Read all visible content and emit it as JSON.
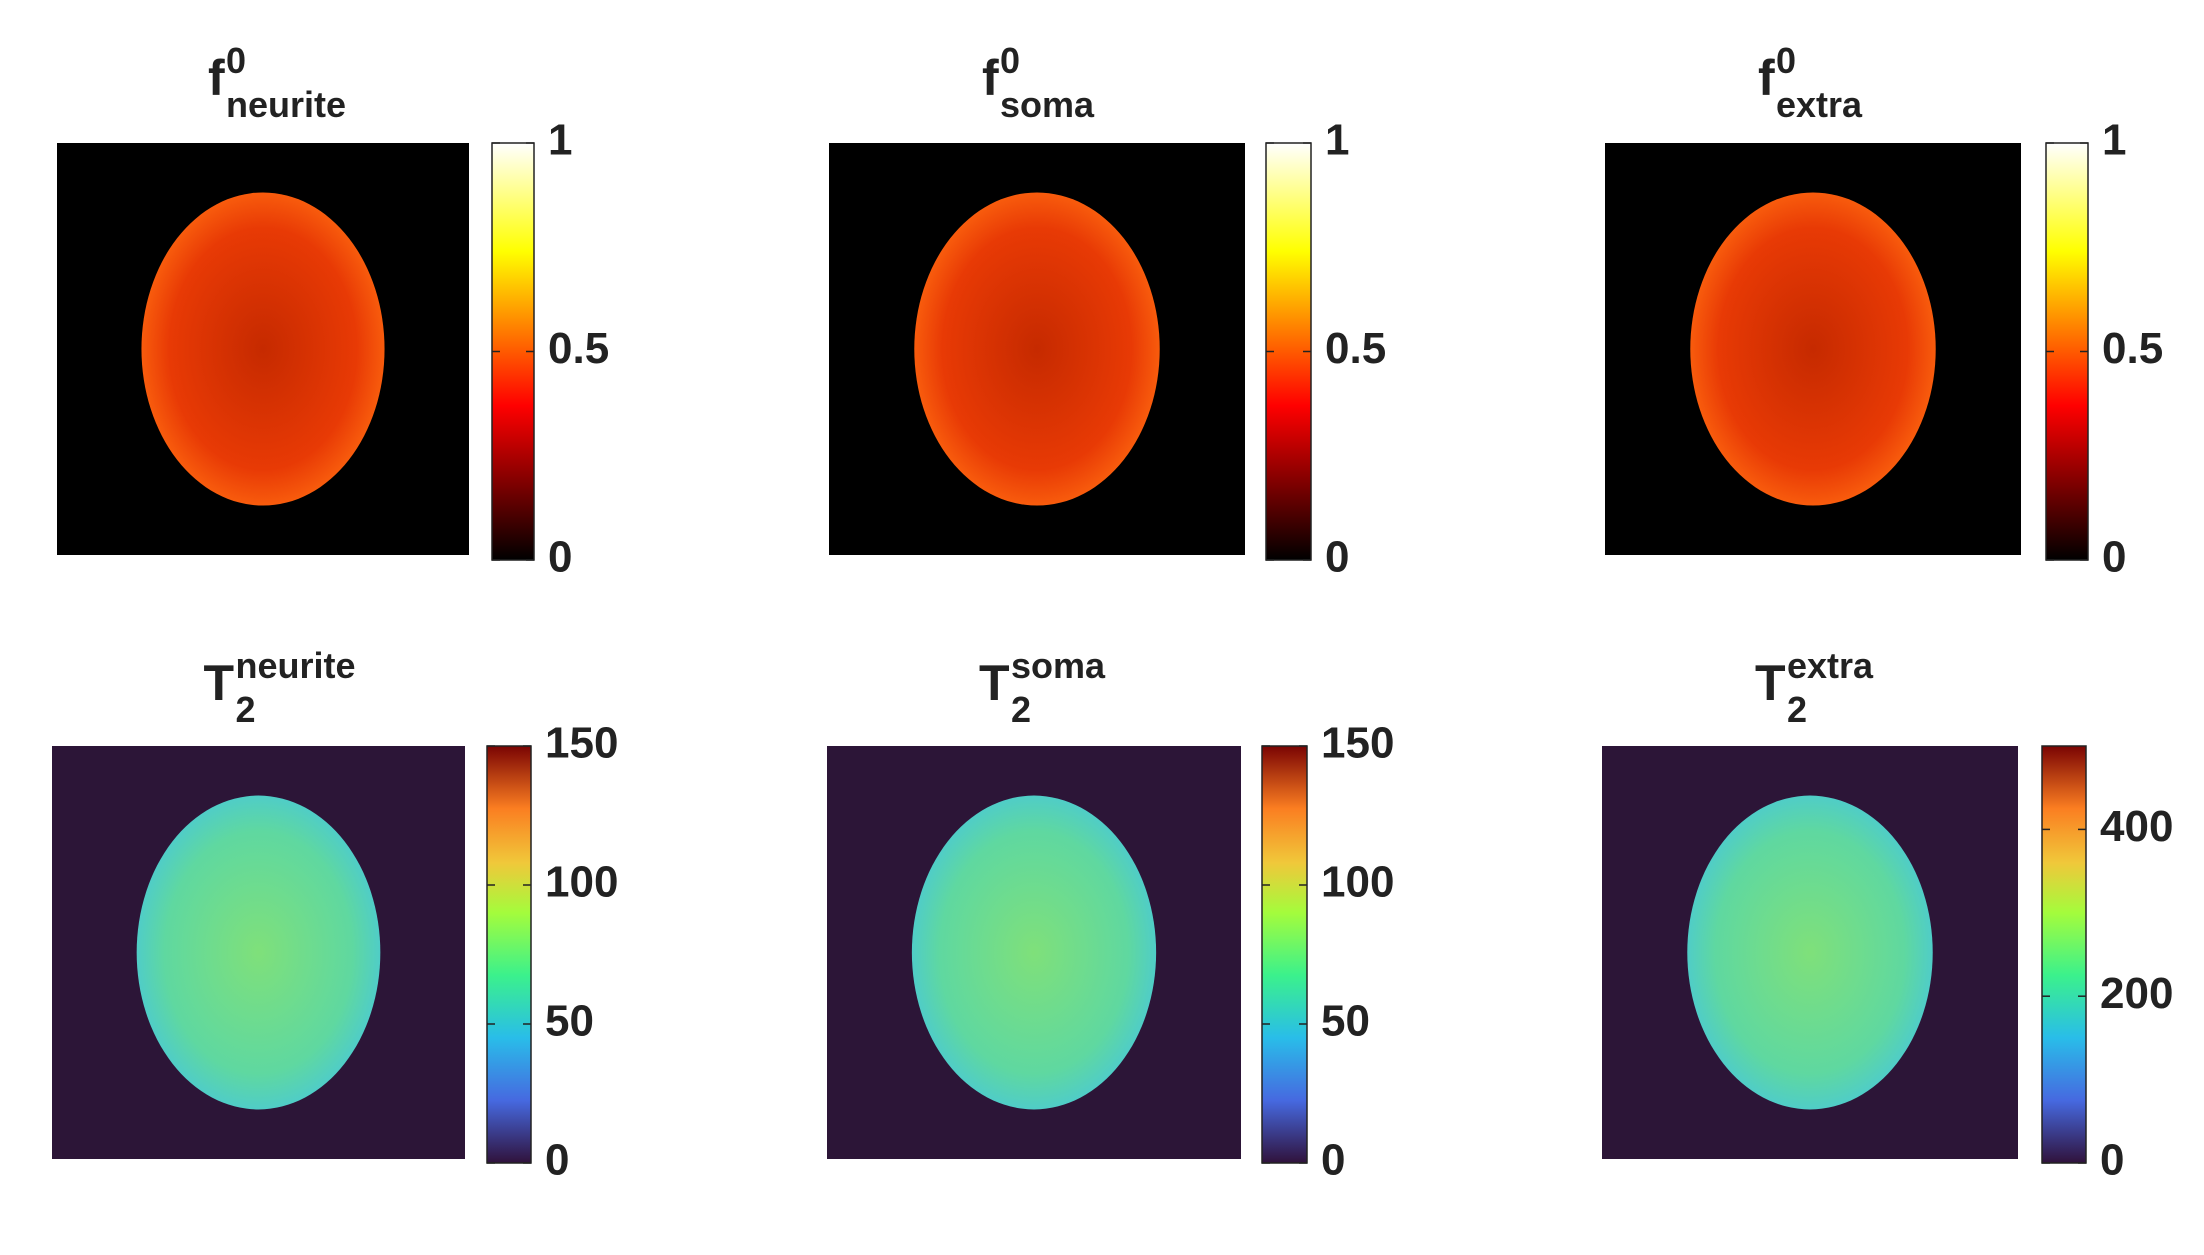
{
  "panels": [
    {
      "title": {
        "base": "f",
        "sup": "0",
        "sub": "neurite"
      },
      "colormap": "hot",
      "background": "#000000",
      "clim": [
        0,
        1
      ],
      "cticks": [
        0,
        0.5,
        1
      ]
    },
    {
      "title": {
        "base": "f",
        "sup": "0",
        "sub": "soma"
      },
      "colormap": "hot",
      "background": "#000000",
      "clim": [
        0,
        1
      ],
      "cticks": [
        0,
        0.5,
        1
      ]
    },
    {
      "title": {
        "base": "f",
        "sup": "0",
        "sub": "extra"
      },
      "colormap": "hot",
      "background": "#000000",
      "clim": [
        0,
        1
      ],
      "cticks": [
        0,
        0.5,
        1
      ]
    },
    {
      "title": {
        "base": "T",
        "sup": "neurite",
        "sub": "2"
      },
      "colormap": "turbo",
      "background": "#2c1537",
      "clim": [
        0,
        150
      ],
      "cticks": [
        0,
        50,
        100,
        150
      ]
    },
    {
      "title": {
        "base": "T",
        "sup": "soma",
        "sub": "2"
      },
      "colormap": "turbo",
      "background": "#2c1537",
      "clim": [
        0,
        150
      ],
      "cticks": [
        0,
        50,
        100,
        150
      ]
    },
    {
      "title": {
        "base": "T",
        "sup": "extra",
        "sub": "2"
      },
      "colormap": "turbo",
      "background": "#2c1537",
      "clim": [
        0,
        500
      ],
      "cticks": [
        0,
        200,
        400
      ]
    }
  ]
}
